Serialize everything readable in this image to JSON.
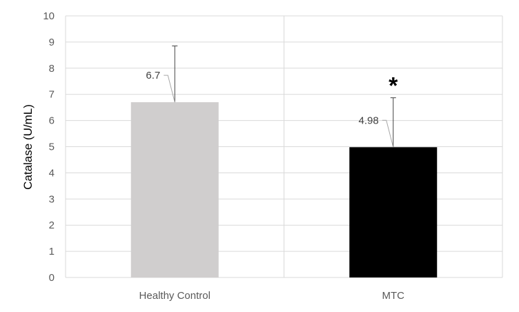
{
  "chart_data": {
    "type": "bar",
    "title": "",
    "xlabel": "",
    "ylabel": "Catalase (U/mL)",
    "ylim": [
      0,
      10
    ],
    "yticks": [
      0,
      1,
      2,
      3,
      4,
      5,
      6,
      7,
      8,
      9,
      10
    ],
    "grid": true,
    "legend": "none",
    "categories": [
      "Healthy Control",
      "MTC"
    ],
    "values": [
      6.7,
      4.98
    ],
    "error_upper": [
      8.85,
      6.87
    ],
    "data_labels": [
      "6.7",
      "4.98"
    ],
    "annotations": [
      {
        "category": "MTC",
        "text": "*"
      }
    ],
    "colors": [
      "#d0cece",
      "#000000"
    ]
  }
}
